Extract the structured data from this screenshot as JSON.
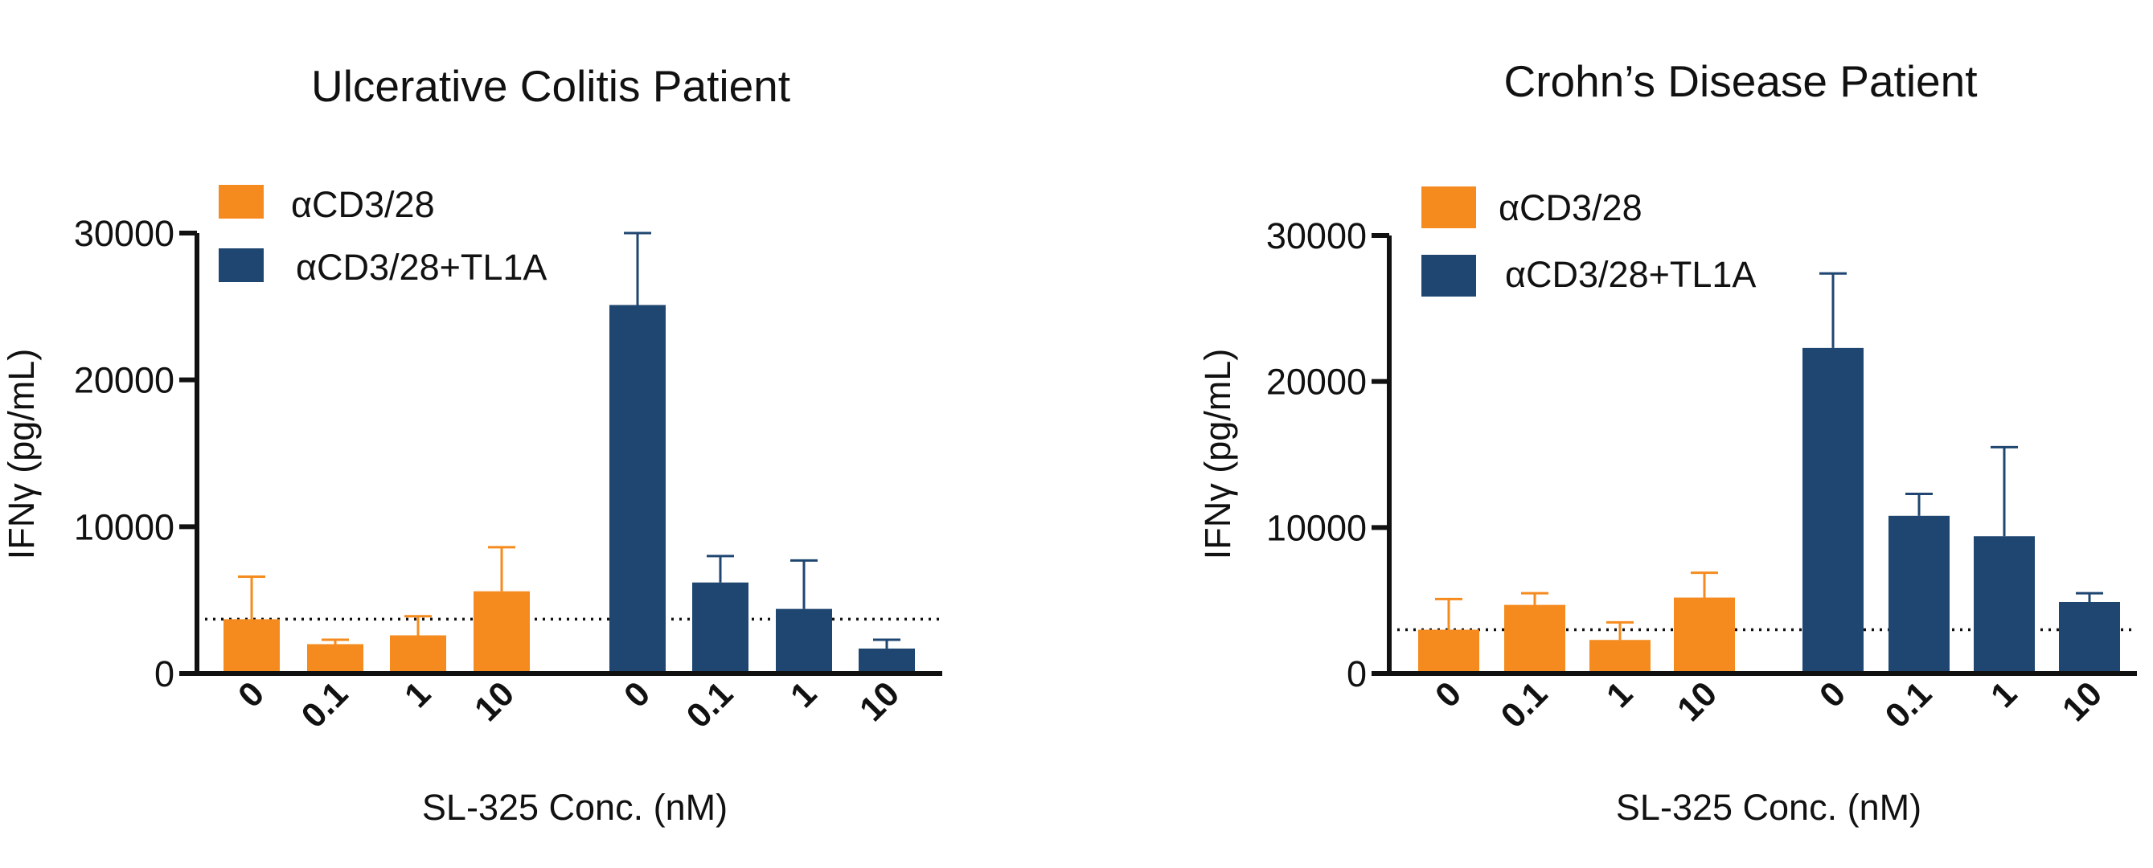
{
  "colors": {
    "orange": "#f58b1f",
    "navy": "#1f4670",
    "axis": "#111111"
  },
  "chart_data": [
    {
      "type": "bar",
      "title": "Ulcerative Colitis Patient",
      "xlabel": "SL-325 Conc. (nM)",
      "ylabel": "IFNγ (pg/mL)",
      "ylim": [
        0,
        30000
      ],
      "yticks": [
        0,
        10000,
        20000,
        30000
      ],
      "ytick_labels": [
        "0",
        "10000",
        "20000",
        "30000"
      ],
      "baseline_dotted": 3700,
      "legend_position": "top-left",
      "series": [
        {
          "name": "αCD3/28",
          "color": "#f58b1f",
          "categories": [
            "0",
            "0.1",
            "1",
            "10"
          ],
          "values": [
            3700,
            2000,
            2600,
            5600
          ],
          "errors": [
            2900,
            300,
            1300,
            3000
          ]
        },
        {
          "name": "αCD3/28+TL1A",
          "color": "#1f4670",
          "categories": [
            "0",
            "0.1",
            "1",
            "10"
          ],
          "values": [
            25100,
            6200,
            4400,
            1700
          ],
          "errors": [
            4900,
            1800,
            3300,
            600
          ]
        }
      ]
    },
    {
      "type": "bar",
      "title": "Crohn’s Disease Patient",
      "xlabel": "SL-325 Conc. (nM)",
      "ylabel": "IFNγ (pg/mL)",
      "ylim": [
        0,
        30000
      ],
      "yticks": [
        0,
        10000,
        20000,
        30000
      ],
      "ytick_labels": [
        "0",
        "10000",
        "20000",
        "30000"
      ],
      "baseline_dotted": 3000,
      "legend_position": "top-left",
      "series": [
        {
          "name": "αCD3/28",
          "color": "#f58b1f",
          "categories": [
            "0",
            "0.1",
            "1",
            "10"
          ],
          "values": [
            3000,
            4700,
            2300,
            5200
          ],
          "errors": [
            2100,
            800,
            1200,
            1700
          ]
        },
        {
          "name": "αCD3/28+TL1A",
          "color": "#1f4670",
          "categories": [
            "0",
            "0.1",
            "1",
            "10"
          ],
          "values": [
            22300,
            10800,
            9400,
            4900
          ],
          "errors": [
            5100,
            1500,
            6100,
            600
          ]
        }
      ]
    }
  ]
}
